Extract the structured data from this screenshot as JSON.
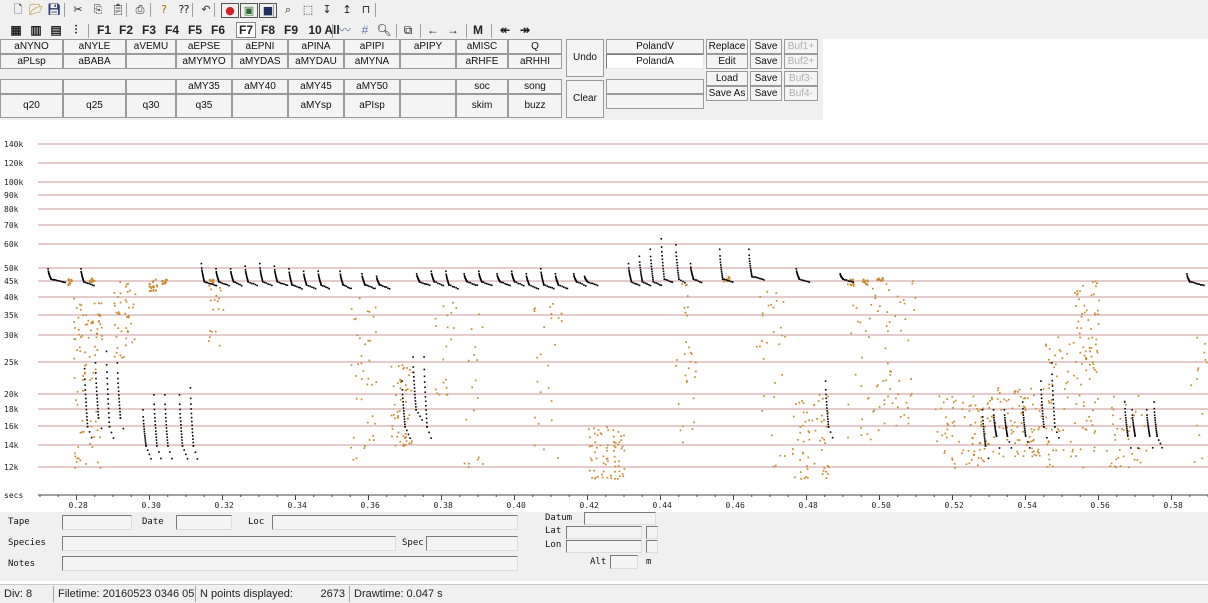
{
  "toolbar_icons": [
    "new-icon",
    "open-icon",
    "save-icon",
    "cut-icon",
    "copy-icon",
    "paste-icon",
    "print-icon",
    "help-icon",
    "context-help-icon",
    "undo-icon",
    "record-icon",
    "filter-icon",
    "stop-icon",
    "zoom-icon",
    "select-rect-icon",
    "cursor-down-icon",
    "cursor-up-icon",
    "tree-icon"
  ],
  "function_keys": [
    "F1",
    "F2",
    "F3",
    "F4",
    "F5",
    "F6",
    "F7",
    "F8",
    "F9",
    "10",
    "All"
  ],
  "nav": {
    "m_label": "M"
  },
  "species_buttons": [
    [
      "aNYNO",
      "aNYLE",
      "aVEMU",
      "aEPSE",
      "aEPNI",
      "aPINA",
      "aPIPI",
      "aPIPY",
      "aMISC",
      "Q"
    ],
    [
      "aPLsp",
      "aBABA",
      "",
      "aMYMYO",
      "aMYDAS",
      "aMYDAU",
      "aMYNA",
      "",
      "aRHFE",
      "aRHHI"
    ],
    [
      "",
      "",
      "",
      "aMY35",
      "aMY40",
      "aMY45",
      "aMY50",
      "",
      "soc",
      "song"
    ],
    [
      "q20",
      "q25",
      "q30",
      "q35",
      "",
      "aMYsp",
      "aPIsp",
      "",
      "skim",
      "buzz"
    ]
  ],
  "undo_label": "Undo",
  "clear_label": "Clear",
  "label_v": "PolandV",
  "label_a": "PolandA",
  "file_buttons": [
    "Replace",
    "Edit",
    "Load",
    "Save As"
  ],
  "save_buttons": [
    "Save",
    "Save",
    "Save",
    "Save"
  ],
  "buf_buttons": [
    "Buf1+",
    "Buf2+",
    "Buf3-",
    "Buf4-"
  ],
  "y_ticks": [
    {
      "label": "140k",
      "v": 140
    },
    {
      "label": "120k",
      "v": 120
    },
    {
      "label": "100k",
      "v": 100
    },
    {
      "label": "90k",
      "v": 90
    },
    {
      "label": "80k",
      "v": 80
    },
    {
      "label": "70k",
      "v": 70
    },
    {
      "label": "60k",
      "v": 60
    },
    {
      "label": "50k",
      "v": 50
    },
    {
      "label": "45k",
      "v": 45
    },
    {
      "label": "40k",
      "v": 40
    },
    {
      "label": "35k",
      "v": 35
    },
    {
      "label": "30k",
      "v": 30
    },
    {
      "label": "25k",
      "v": 25
    },
    {
      "label": "20k",
      "v": 20
    },
    {
      "label": "18k",
      "v": 18
    },
    {
      "label": "16k",
      "v": 16
    },
    {
      "label": "14k",
      "v": 14
    },
    {
      "label": "12k",
      "v": 12
    }
  ],
  "x_axis_label": "secs",
  "x_ticks": [
    "0.28",
    "0.30",
    "0.32",
    "0.34",
    "0.36",
    "0.38",
    "0.40",
    "0.42",
    "0.44",
    "0.46",
    "0.48",
    "0.50",
    "0.52",
    "0.54",
    "0.56",
    "0.58"
  ],
  "x_tick_values": [
    0.28,
    0.3,
    0.32,
    0.34,
    0.36,
    0.38,
    0.4,
    0.42,
    0.44,
    0.46,
    0.48,
    0.5,
    0.52,
    0.54,
    0.56,
    0.58
  ],
  "colors": {
    "call": "#000000",
    "noise": "#c8882a",
    "grid": "#c89898"
  },
  "info": {
    "tape_label": "Tape",
    "date_label": "Date",
    "loc_label": "Loc",
    "species_label": "Species",
    "spec_label": "Spec",
    "notes_label": "Notes",
    "datum_label": "Datum",
    "lat_label": "Lat",
    "lon_label": "Lon",
    "alt_label": "Alt",
    "alt_unit": "m"
  },
  "status": {
    "div": "Div: 8",
    "filetime": "Filetime: 20160523 0346 05",
    "npoints_label": "N points displayed:",
    "npoints": "2673",
    "drawtime": "Drawtime: 0.047 s"
  }
}
